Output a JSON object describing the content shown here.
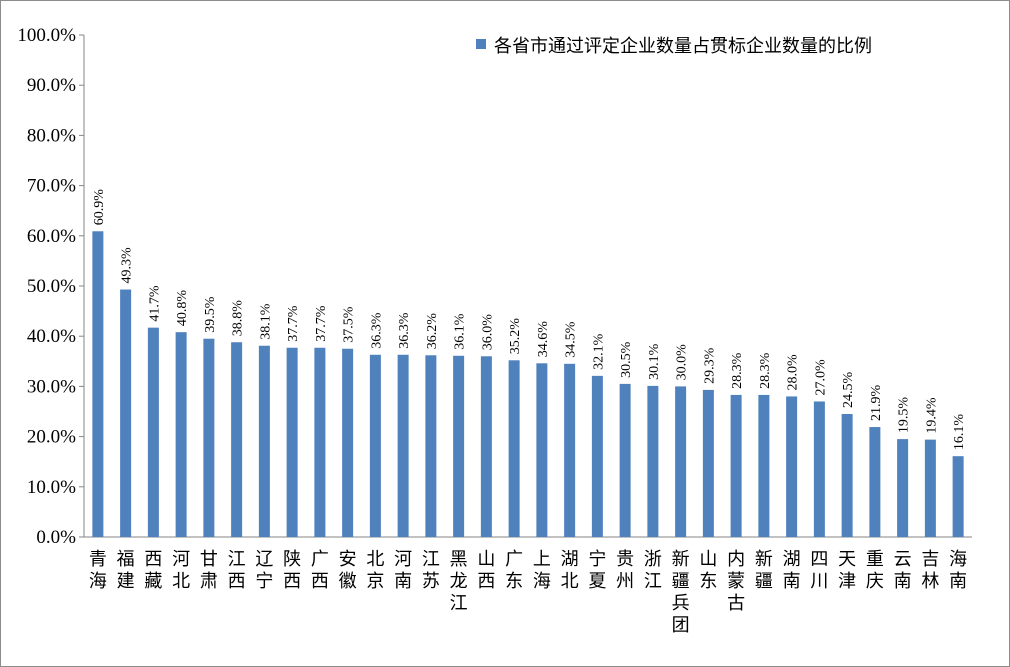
{
  "chart_data": {
    "type": "bar",
    "legend_position": "top-right",
    "grid": false,
    "ylim": [
      0,
      100
    ],
    "ytick_labels": [
      "0.0%",
      "10.0%",
      "20.0%",
      "30.0%",
      "40.0%",
      "50.0%",
      "60.0%",
      "70.0%",
      "80.0%",
      "90.0%",
      "100.0%"
    ],
    "categories": [
      "青海",
      "福建",
      "西藏",
      "河北",
      "甘肃",
      "江西",
      "辽宁",
      "陕西",
      "广西",
      "安徽",
      "北京",
      "河南",
      "江苏",
      "黑龙江",
      "山西",
      "广东",
      "上海",
      "湖北",
      "宁夏",
      "贵州",
      "浙江",
      "新疆兵团",
      "山东",
      "内蒙古",
      "新疆",
      "湖南",
      "四川",
      "天津",
      "重庆",
      "云南",
      "吉林",
      "海南"
    ],
    "series": [
      {
        "name": "各省市通过评定企业数量占贯标企业数量的比例",
        "color": "#4f81bd",
        "values": [
          60.9,
          49.3,
          41.7,
          40.8,
          39.5,
          38.8,
          38.1,
          37.7,
          37.7,
          37.5,
          36.3,
          36.3,
          36.2,
          36.1,
          36.0,
          35.2,
          34.6,
          34.5,
          32.1,
          30.5,
          30.1,
          30.0,
          29.3,
          28.3,
          28.3,
          28.0,
          27.0,
          24.5,
          21.9,
          19.5,
          19.4,
          16.1
        ],
        "labels": [
          "60.9%",
          "49.3%",
          "41.7%",
          "40.8%",
          "39.5%",
          "38.8%",
          "38.1%",
          "37.7%",
          "37.7%",
          "37.5%",
          "36.3%",
          "36.3%",
          "36.2%",
          "36.1%",
          "36.0%",
          "35.2%",
          "34.6%",
          "34.5%",
          "32.1%",
          "30.5%",
          "30.1%",
          "30.0%",
          "29.3%",
          "28.3%",
          "28.3%",
          "28.0%",
          "27.0%",
          "24.5%",
          "21.9%",
          "19.5%",
          "19.4%",
          "16.1%"
        ]
      }
    ]
  }
}
